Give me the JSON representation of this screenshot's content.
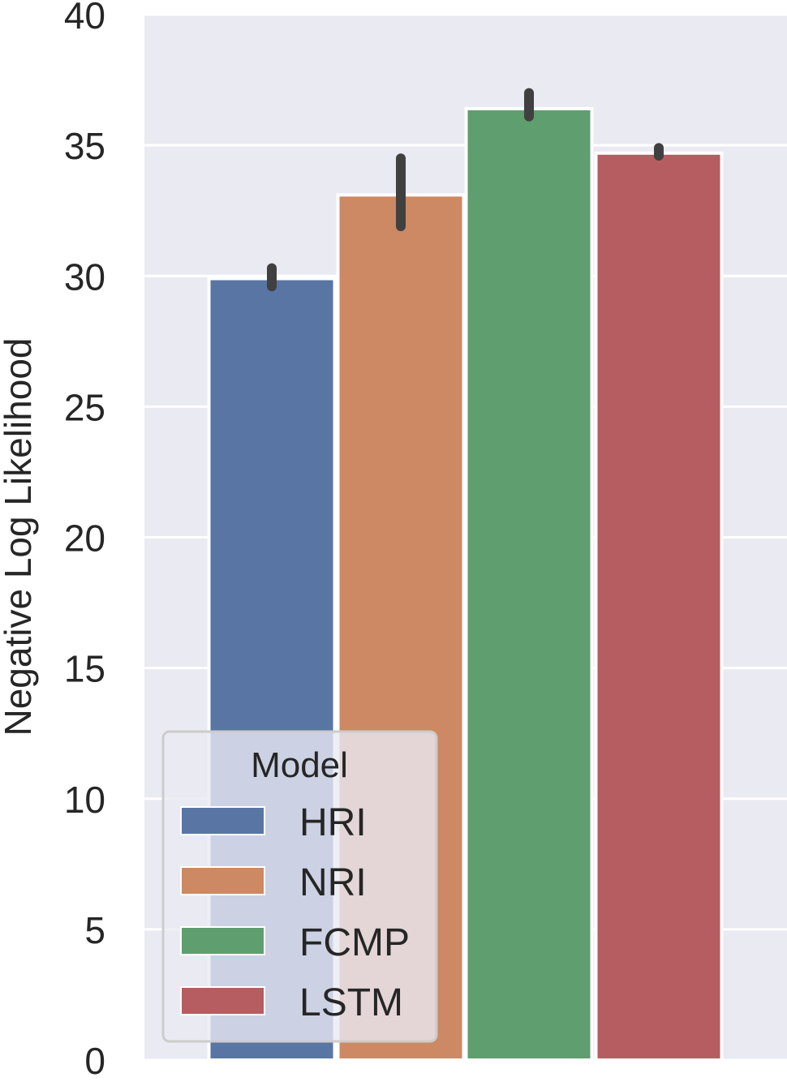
{
  "chart_data": {
    "type": "bar",
    "title": "",
    "xlabel": "",
    "ylabel": "Negative Log Likelihood",
    "ylim": [
      0,
      40
    ],
    "yticks": [
      0,
      5,
      10,
      15,
      20,
      25,
      30,
      35,
      40
    ],
    "grid": true,
    "legend": {
      "title": "Model",
      "placement": "lower-left",
      "entries": [
        "HRI",
        "NRI",
        "FCMP",
        "LSTM"
      ]
    },
    "categories": [
      "HRI",
      "NRI",
      "FCMP",
      "LSTM"
    ],
    "values": [
      29.9,
      33.1,
      36.4,
      34.7
    ],
    "error_low": [
      29.6,
      31.9,
      36.1,
      34.6
    ],
    "error_high": [
      30.3,
      34.5,
      37.0,
      34.9
    ],
    "colors": [
      "#5875a4",
      "#cc8963",
      "#5f9e6e",
      "#b55d60"
    ]
  }
}
